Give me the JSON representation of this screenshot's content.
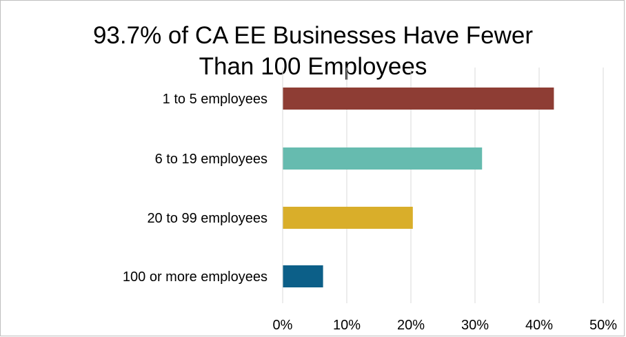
{
  "chart_data": {
    "type": "bar",
    "orientation": "horizontal",
    "title_line1": "93.7% of CA EE Businesses Have Fewer",
    "title_line2": "Than 100 Employees",
    "categories": [
      "1 to 5 employees",
      "6 to 19 employees",
      "20 to 99 employees",
      "100 or more employees"
    ],
    "values": [
      42.3,
      31.1,
      20.3,
      6.3
    ],
    "colors": [
      "#8e3d34",
      "#66bbaf",
      "#d9ae2a",
      "#0c5f88"
    ],
    "xlim": [
      0,
      50
    ],
    "x_ticks": [
      "0%",
      "10%",
      "20%",
      "30%",
      "40%",
      "50%"
    ],
    "grid": true,
    "legend": "none"
  }
}
